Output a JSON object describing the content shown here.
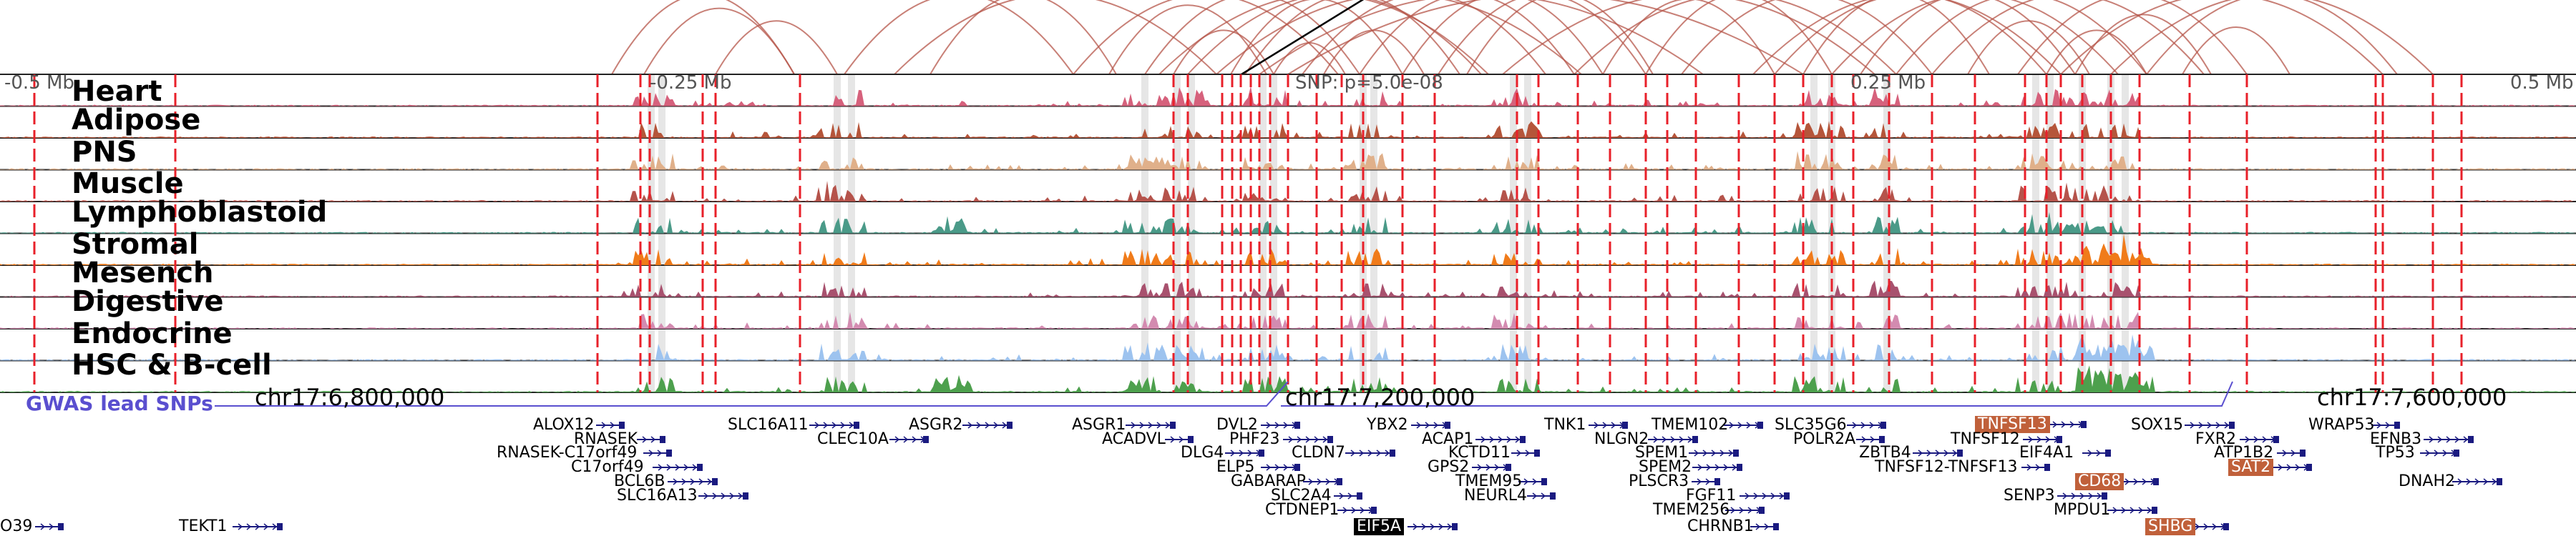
{
  "snp_annotation": "SNP: p=5.0e-08",
  "axis_ticks": [
    "-0.5 Mb",
    "-0.25 Mb",
    "0.25 Mb",
    "0.5 Mb"
  ],
  "tracks": [
    {
      "label": "Heart",
      "color": "#d6617c"
    },
    {
      "label": "Adipose",
      "color": "#b5553a"
    },
    {
      "label": "PNS",
      "color": "#e0b08a"
    },
    {
      "label": "Muscle",
      "color": "#b5534b"
    },
    {
      "label": "Lymphoblastoid",
      "color": "#4a9a88"
    },
    {
      "label": "Stromal",
      "color": "#f07b1a"
    },
    {
      "label": "Mesench",
      "color": "#a8516e"
    },
    {
      "label": "Digestive",
      "color": "#d38bb0"
    },
    {
      "label": "Endocrine",
      "color": "#9dc3ef"
    },
    {
      "label": "HSC & B-cell",
      "color": "#4da04d"
    }
  ],
  "gwas_label": "GWAS lead SNPs",
  "chromosome_ticks": [
    "chr17:6,800,000",
    "chr17:7,200,000",
    "chr17:7,600,000"
  ],
  "genes": [
    {
      "name": "ALOX12",
      "highlight": false
    },
    {
      "name": "RNASEK",
      "highlight": false
    },
    {
      "name": "RNASEK-C17orf49",
      "highlight": false
    },
    {
      "name": "C17orf49",
      "highlight": false
    },
    {
      "name": "BCL6B",
      "highlight": false
    },
    {
      "name": "SLC16A13",
      "highlight": false
    },
    {
      "name": "SLC16A11",
      "highlight": false
    },
    {
      "name": "CLEC10A",
      "highlight": false
    },
    {
      "name": "ASGR2",
      "highlight": false
    },
    {
      "name": "ASGR1",
      "highlight": false
    },
    {
      "name": "ACADVL",
      "highlight": false
    },
    {
      "name": "DVL2",
      "highlight": false
    },
    {
      "name": "PHF23",
      "highlight": false
    },
    {
      "name": "DLG4",
      "highlight": false
    },
    {
      "name": "CLDN7",
      "highlight": false
    },
    {
      "name": "ELP5",
      "highlight": false
    },
    {
      "name": "GABARAP",
      "highlight": false
    },
    {
      "name": "SLC2A4",
      "highlight": false
    },
    {
      "name": "CTDNEP1",
      "highlight": false
    },
    {
      "name": "EIF5A",
      "highlight": true,
      "color": "#000000"
    },
    {
      "name": "YBX2",
      "highlight": false
    },
    {
      "name": "ACAP1",
      "highlight": false
    },
    {
      "name": "KCTD11",
      "highlight": false
    },
    {
      "name": "GPS2",
      "highlight": false
    },
    {
      "name": "TMEM95",
      "highlight": false
    },
    {
      "name": "NEURL4",
      "highlight": false
    },
    {
      "name": "TNK1",
      "highlight": false
    },
    {
      "name": "NLGN2",
      "highlight": false
    },
    {
      "name": "TMEM102",
      "highlight": false
    },
    {
      "name": "SPEM1",
      "highlight": false
    },
    {
      "name": "SPEM2",
      "highlight": false
    },
    {
      "name": "PLSCR3",
      "highlight": false
    },
    {
      "name": "FGF11",
      "highlight": false
    },
    {
      "name": "TMEM256",
      "highlight": false
    },
    {
      "name": "CHRNB1",
      "highlight": false
    },
    {
      "name": "SLC35G6",
      "highlight": false
    },
    {
      "name": "POLR2A",
      "highlight": false
    },
    {
      "name": "ZBTB4",
      "highlight": false
    },
    {
      "name": "TNFSF13",
      "highlight": true,
      "color": "#c0603a"
    },
    {
      "name": "TNFSF12",
      "highlight": false
    },
    {
      "name": "EIF4A1",
      "highlight": false
    },
    {
      "name": "TNFSF12-TNFSF13",
      "highlight": false
    },
    {
      "name": "CD68",
      "highlight": true,
      "color": "#c0603a"
    },
    {
      "name": "SENP3",
      "highlight": false
    },
    {
      "name": "MPDU1",
      "highlight": false
    },
    {
      "name": "SOX15",
      "highlight": false
    },
    {
      "name": "FXR2",
      "highlight": false
    },
    {
      "name": "ATP1B2",
      "highlight": false
    },
    {
      "name": "SAT2",
      "highlight": true,
      "color": "#c0603a"
    },
    {
      "name": "SHBG",
      "highlight": true,
      "color": "#c0603a"
    },
    {
      "name": "WRAP53",
      "highlight": false
    },
    {
      "name": "EFNB3",
      "highlight": false
    },
    {
      "name": "TP53",
      "highlight": false
    },
    {
      "name": "DNAH2",
      "highlight": false
    },
    {
      "name": "O39",
      "highlight": false
    },
    {
      "name": "TEKT1",
      "highlight": false
    }
  ],
  "colors": {
    "arc": "#b5554a",
    "snp_line": "#e8202a",
    "gene_strand": "#1a1a80",
    "highlight_band": "#c8c8c8",
    "gwas": "#5a4fcf"
  }
}
